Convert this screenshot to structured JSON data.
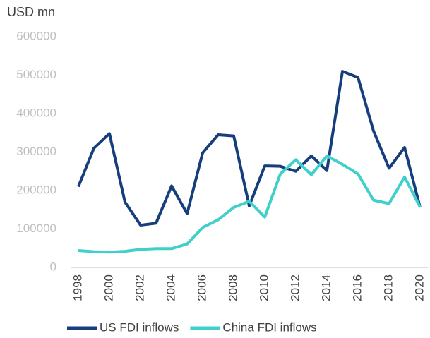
{
  "chart_data": {
    "type": "line",
    "title": "USD mn",
    "categories": [
      "1998",
      null,
      "2000",
      null,
      "2002",
      null,
      "2004",
      null,
      "2006",
      null,
      "2008",
      null,
      "2010",
      null,
      "2012",
      null,
      "2014",
      null,
      "2016",
      null,
      "2018",
      null,
      "2020"
    ],
    "series": [
      {
        "name": "US FDI inflows",
        "color": "#173e7c",
        "values": [
          210000,
          310000,
          348000,
          170000,
          110000,
          115000,
          212000,
          140000,
          298000,
          345000,
          342000,
          160000,
          264000,
          263000,
          250000,
          290000,
          252000,
          510000,
          494000,
          355000,
          258000,
          312000,
          156000
        ]
      },
      {
        "name": "China FDI inflows",
        "color": "#40d0cb",
        "values": [
          44000,
          41000,
          40000,
          42000,
          47000,
          49000,
          49000,
          61000,
          104000,
          124000,
          156000,
          172000,
          131000,
          243000,
          280000,
          241000,
          290000,
          268000,
          243000,
          175000,
          166000,
          235000,
          157000
        ]
      }
    ],
    "ylim": [
      0,
      600000
    ],
    "yticks": [
      0,
      100000,
      200000,
      300000,
      400000,
      500000,
      600000
    ],
    "grid": false
  }
}
